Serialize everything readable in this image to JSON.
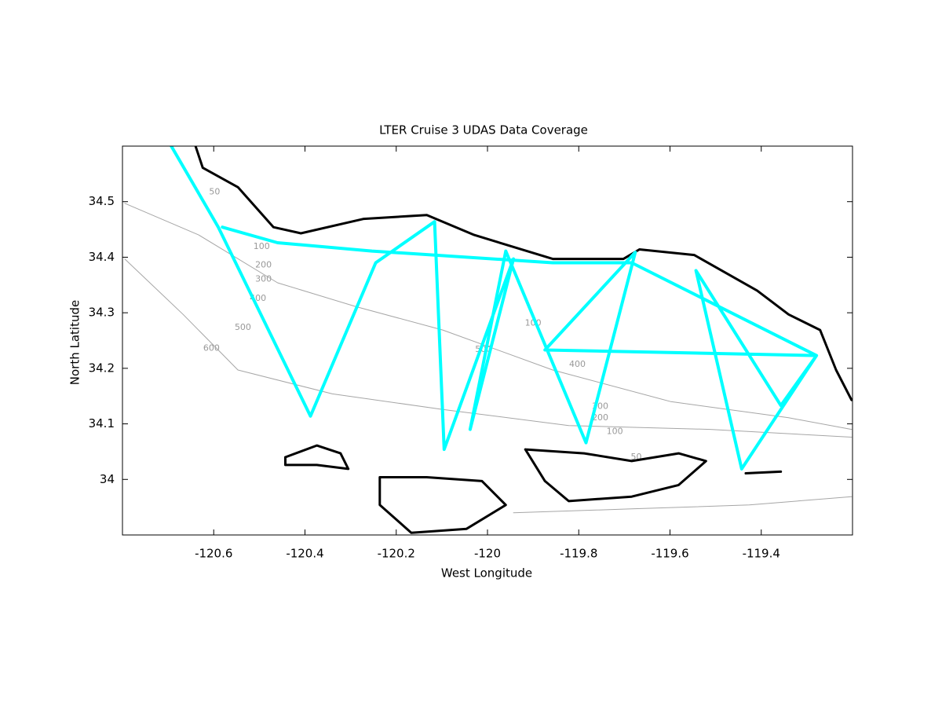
{
  "chart_data": {
    "type": "line",
    "title": "LTER Cruise 3 UDAS Data Coverage",
    "x_label": "West Longitude",
    "y_label": "North Latitude",
    "xlim": [
      -120.8,
      -119.2
    ],
    "ylim": [
      33.9,
      34.6
    ],
    "xticks": [
      -120.6,
      -120.4,
      -120.2,
      -120,
      -119.8,
      -119.6,
      -119.4
    ],
    "yticks": [
      34,
      34.1,
      34.2,
      34.3,
      34.4,
      34.5
    ],
    "series": [
      {
        "color": "#a6a6a6",
        "line_width": 1,
        "x": [
          -120.795,
          -120.633,
          -120.46,
          -120.288,
          -120.098,
          -119.857,
          -119.598,
          -119.34,
          -119.202
        ],
        "y": [
          34.497,
          34.44,
          34.354,
          34.311,
          34.269,
          34.197,
          34.14,
          34.111,
          34.09
        ]
      },
      {
        "color": "#a6a6a6",
        "line_width": 1,
        "x": [
          -120.795,
          -120.667,
          -120.547,
          -120.34,
          -120.098,
          -119.822,
          -119.512,
          -119.202
        ],
        "y": [
          34.397,
          34.297,
          34.197,
          34.154,
          34.126,
          34.097,
          34.09,
          34.076
        ]
      },
      {
        "color": "#a6a6a6",
        "line_width": 1,
        "x": [
          -119.943,
          -119.684,
          -119.426,
          -119.202
        ],
        "y": [
          33.94,
          33.947,
          33.954,
          33.969
        ]
      },
      {
        "color": "#000000",
        "line_width": 3,
        "x": [
          -120.641,
          -120.624,
          -120.547,
          -120.469,
          -120.409,
          -120.271,
          -120.133,
          -120.029,
          -119.857,
          -119.702,
          -119.667,
          -119.547,
          -119.409,
          -119.34,
          -119.271,
          -119.236,
          -119.202
        ],
        "y": [
          34.603,
          34.561,
          34.526,
          34.454,
          34.443,
          34.469,
          34.476,
          34.44,
          34.397,
          34.397,
          34.414,
          34.404,
          34.34,
          34.297,
          34.269,
          34.197,
          34.143
        ]
      },
      {
        "color": "#000000",
        "line_width": 3,
        "x": [
          -120.443,
          -120.374,
          -120.322,
          -120.305,
          -120.374,
          -120.443,
          -120.443
        ],
        "y": [
          34.04,
          34.061,
          34.047,
          34.019,
          34.026,
          34.026,
          34.04
        ]
      },
      {
        "color": "#000000",
        "line_width": 3,
        "x": [
          -119.917,
          -119.788,
          -119.684,
          -119.581,
          -119.521,
          -119.581,
          -119.684,
          -119.822,
          -119.874,
          -119.917
        ],
        "y": [
          34.054,
          34.047,
          34.033,
          34.047,
          34.033,
          33.99,
          33.969,
          33.961,
          33.997,
          34.054
        ]
      },
      {
        "color": "#000000",
        "line_width": 3,
        "x": [
          -120.236,
          -120.133,
          -120.012,
          -119.96,
          -120.046,
          -120.167,
          -120.236,
          -120.236
        ],
        "y": [
          34.004,
          34.004,
          33.997,
          33.954,
          33.911,
          33.904,
          33.954,
          34.004
        ]
      },
      {
        "color": "#000000",
        "line_width": 3,
        "x": [
          -119.434,
          -119.357
        ],
        "y": [
          34.011,
          34.014
        ]
      },
      {
        "color": "#00ffff",
        "line_width": 4,
        "x": [
          -120.693,
          -120.59,
          -120.388,
          -120.245,
          -120.116,
          -120.095,
          -119.943,
          -120.038,
          -119.96,
          -119.784,
          -119.676,
          -119.874,
          -119.279,
          -119.443,
          -119.543,
          -119.357,
          -119.279,
          -119.684,
          -119.857,
          -120.253,
          -120.46,
          -120.581
        ],
        "y": [
          34.6,
          34.454,
          34.114,
          34.39,
          34.464,
          34.054,
          34.397,
          34.09,
          34.411,
          34.066,
          34.409,
          34.233,
          34.223,
          34.019,
          34.376,
          34.133,
          34.223,
          34.39,
          34.39,
          34.411,
          34.426,
          34.454
        ]
      }
    ],
    "annotations": [
      {
        "text": "50",
        "x": -120.598,
        "y": 34.517
      },
      {
        "text": "100",
        "x": -120.495,
        "y": 34.419
      },
      {
        "text": "200",
        "x": -120.491,
        "y": 34.386
      },
      {
        "text": "300",
        "x": -120.491,
        "y": 34.36
      },
      {
        "text": "400",
        "x": -120.503,
        "y": 34.326
      },
      {
        "text": "500",
        "x": -120.536,
        "y": 34.273
      },
      {
        "text": "600",
        "x": -120.605,
        "y": 34.236
      },
      {
        "text": "500",
        "x": -120.009,
        "y": 34.234
      },
      {
        "text": "100",
        "x": -119.9,
        "y": 34.281
      },
      {
        "text": "400",
        "x": -119.803,
        "y": 34.207
      },
      {
        "text": "300",
        "x": -119.753,
        "y": 34.131
      },
      {
        "text": "200",
        "x": -119.753,
        "y": 34.111
      },
      {
        "text": "100",
        "x": -119.721,
        "y": 34.086
      },
      {
        "text": "50",
        "x": -119.674,
        "y": 34.04
      }
    ]
  }
}
